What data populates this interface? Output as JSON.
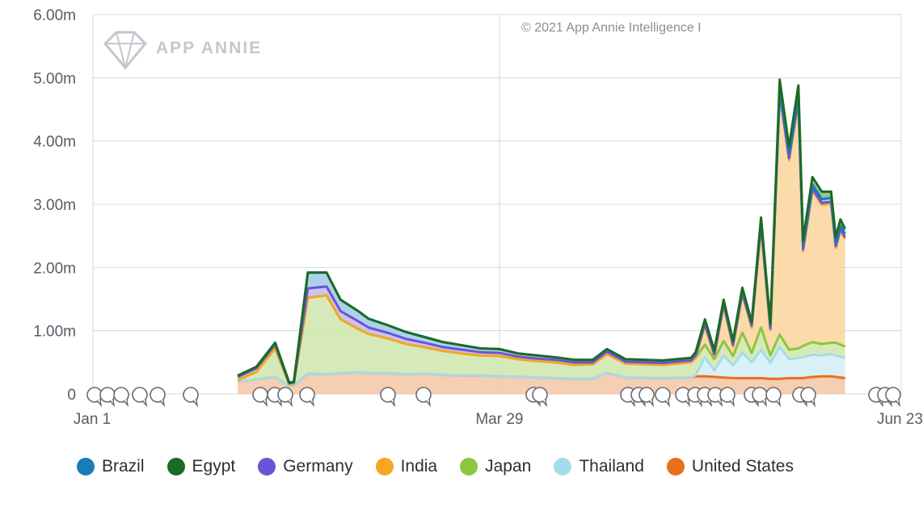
{
  "chart_data": {
    "type": "area",
    "stacked": true,
    "watermark": "APP ANNIE",
    "copyright": "© 2021 App Annie Intelligence I",
    "x_ticks": [
      "Jan 1",
      "Mar 29",
      "Jun 23"
    ],
    "y_ticks": [
      "0",
      "1.00m",
      "2.00m",
      "3.00m",
      "4.00m",
      "5.00m",
      "6.00m"
    ],
    "ylim": [
      0,
      6000000
    ],
    "grid": true,
    "legend_position": "bottom",
    "x_points": [
      "Feb 1",
      "Feb 5",
      "Feb 9",
      "Feb 12",
      "Feb 13",
      "Feb 16",
      "Feb 20",
      "Feb 23",
      "Feb 27",
      "Mar 1",
      "Mar 5",
      "Mar 9",
      "Mar 13",
      "Mar 17",
      "Mar 21",
      "Mar 25",
      "Mar 29",
      "Apr 2",
      "Apr 6",
      "Apr 10",
      "Apr 14",
      "Apr 18",
      "Apr 21",
      "Apr 25",
      "Apr 29",
      "May 3",
      "May 6",
      "May 9",
      "May 10",
      "May 12",
      "May 14",
      "May 16",
      "May 18",
      "May 20",
      "May 22",
      "May 24",
      "May 26",
      "May 28",
      "May 30",
      "Jun 1",
      "Jun 2",
      "Jun 4",
      "Jun 6",
      "Jun 8",
      "Jun 9",
      "Jun 10",
      "Jun 11"
    ],
    "series": [
      {
        "name": "United States",
        "color": "#e8701c",
        "fill": "#f4c6a3",
        "values": [
          200000,
          230000,
          270000,
          120000,
          130000,
          320000,
          310000,
          330000,
          340000,
          330000,
          330000,
          310000,
          320000,
          300000,
          290000,
          290000,
          280000,
          270000,
          260000,
          250000,
          240000,
          240000,
          330000,
          260000,
          250000,
          250000,
          250000,
          260000,
          280000,
          280000,
          270000,
          260000,
          250000,
          250000,
          250000,
          250000,
          240000,
          240000,
          250000,
          250000,
          250000,
          270000,
          280000,
          280000,
          270000,
          260000,
          250000
        ]
      },
      {
        "name": "Thailand",
        "color": "#a6dcea",
        "fill": "#d2eef5",
        "values": [
          0,
          0,
          0,
          0,
          0,
          0,
          0,
          0,
          0,
          0,
          0,
          0,
          0,
          0,
          0,
          0,
          0,
          0,
          0,
          0,
          0,
          0,
          0,
          0,
          0,
          0,
          0,
          0,
          20000,
          300000,
          100000,
          350000,
          200000,
          400000,
          250000,
          450000,
          250000,
          500000,
          300000,
          320000,
          330000,
          350000,
          330000,
          350000,
          340000,
          330000,
          320000
        ]
      },
      {
        "name": "Japan",
        "color": "#8cc63f",
        "fill": "#cfe6ad",
        "values": [
          20000,
          120000,
          450000,
          30000,
          30000,
          1200000,
          1250000,
          850000,
          680000,
          620000,
          550000,
          480000,
          420000,
          380000,
          350000,
          320000,
          320000,
          280000,
          260000,
          250000,
          220000,
          230000,
          300000,
          220000,
          220000,
          210000,
          230000,
          240000,
          270000,
          200000,
          180000,
          230000,
          150000,
          320000,
          150000,
          350000,
          120000,
          200000,
          150000,
          150000,
          180000,
          200000,
          180000,
          180000,
          200000,
          190000,
          180000
        ]
      },
      {
        "name": "India",
        "color": "#f5a623",
        "fill": "#f9d59a",
        "values": [
          0,
          0,
          0,
          0,
          0,
          0,
          0,
          0,
          0,
          0,
          0,
          0,
          0,
          0,
          0,
          0,
          0,
          0,
          0,
          0,
          0,
          0,
          0,
          0,
          0,
          0,
          0,
          0,
          0,
          300000,
          50000,
          550000,
          150000,
          600000,
          400000,
          1600000,
          400000,
          3800000,
          3000000,
          3900000,
          1500000,
          2400000,
          2200000,
          2200000,
          1500000,
          1800000,
          1700000
        ]
      },
      {
        "name": "Germany",
        "color": "#6a53d8",
        "fill": "#c3b8ee",
        "values": [
          50000,
          60000,
          60000,
          20000,
          20000,
          150000,
          140000,
          130000,
          120000,
          100000,
          90000,
          80000,
          70000,
          60000,
          60000,
          50000,
          50000,
          40000,
          40000,
          40000,
          40000,
          30000,
          40000,
          30000,
          30000,
          30000,
          30000,
          30000,
          40000,
          30000,
          30000,
          30000,
          30000,
          30000,
          30000,
          30000,
          30000,
          30000,
          30000,
          30000,
          30000,
          30000,
          30000,
          30000,
          30000,
          30000,
          30000
        ]
      },
      {
        "name": "Brazil",
        "color": "#1a7bb8",
        "fill": "#9dcae8",
        "values": [
          20000,
          20000,
          30000,
          10000,
          10000,
          250000,
          220000,
          180000,
          160000,
          140000,
          120000,
          110000,
          90000,
          80000,
          70000,
          60000,
          60000,
          50000,
          50000,
          40000,
          40000,
          40000,
          40000,
          40000,
          40000,
          40000,
          40000,
          40000,
          40000,
          50000,
          40000,
          50000,
          40000,
          60000,
          40000,
          70000,
          40000,
          80000,
          80000,
          80000,
          60000,
          60000,
          60000,
          60000,
          50000,
          50000,
          50000
        ]
      },
      {
        "name": "Egypt",
        "color": "#1d6b22",
        "fill": "#86b98a",
        "values": [
          0,
          0,
          0,
          0,
          0,
          0,
          0,
          0,
          0,
          0,
          0,
          0,
          0,
          0,
          0,
          0,
          0,
          0,
          0,
          0,
          0,
          0,
          0,
          0,
          0,
          0,
          0,
          0,
          10000,
          20000,
          20000,
          20000,
          20000,
          20000,
          20000,
          40000,
          30000,
          120000,
          100000,
          150000,
          80000,
          120000,
          120000,
          100000,
          90000,
          100000,
          80000
        ]
      }
    ],
    "legend_order": [
      "Brazil",
      "Egypt",
      "Germany",
      "India",
      "Japan",
      "Thailand",
      "United States"
    ]
  }
}
